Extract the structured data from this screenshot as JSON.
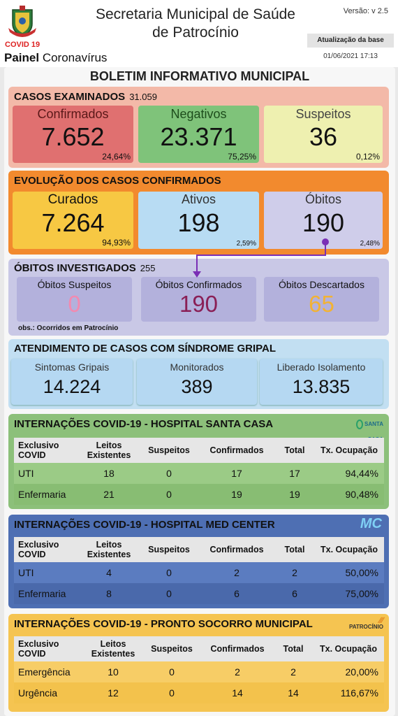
{
  "header": {
    "title_line1": "Secretaria Municipal de Saúde",
    "title_line2": "de Patrocínio",
    "covid_tag": "COVID 19",
    "painel_bold": "Painel",
    "painel_rest": " Coronavírus",
    "version": "Versão: v 2.5",
    "update_label": "Atualização da base",
    "update_date": "01/06/2021 17:13"
  },
  "boletim_title": "BOLETIM INFORMATIVO MUNICIPAL",
  "casos": {
    "title": "CASOS EXAMINADOS",
    "total": "31.059",
    "cards": [
      {
        "label": "Confirmados",
        "value": "7.652",
        "pct": "24,64%"
      },
      {
        "label": "Negativos",
        "value": "23.371",
        "pct": "75,25%"
      },
      {
        "label": "Suspeitos",
        "value": "36",
        "pct": "0,12%"
      }
    ]
  },
  "evolucao": {
    "title": "EVOLUÇÃO DOS CASOS CONFIRMADOS",
    "cards": [
      {
        "label": "Curados",
        "value": "7.264",
        "pct": "94,93%"
      },
      {
        "label": "Ativos",
        "value": "198",
        "pct": "2,59%"
      },
      {
        "label": "Óbitos",
        "value": "190",
        "pct": "2,48%"
      }
    ]
  },
  "obitos_inv": {
    "title": "ÓBITOS INVESTIGADOS",
    "total": "255",
    "cards": [
      {
        "label": "Óbitos Suspeitos",
        "value": "0"
      },
      {
        "label": "Óbitos Confirmados",
        "value": "190"
      },
      {
        "label": "Óbitos Descartados",
        "value": "65"
      }
    ],
    "obs": "obs.: Ocorridos em Patrocínio"
  },
  "sindrome": {
    "title": "ATENDIMENTO DE CASOS COM SÍNDROME GRIPAL",
    "cards": [
      {
        "label": "Sintomas Gripais",
        "value": "14.224"
      },
      {
        "label": "Monitorados",
        "value": "389"
      },
      {
        "label": "Liberado Isolamento",
        "value": "13.835"
      }
    ]
  },
  "santa_casa": {
    "title": "INTERNAÇÕES COVID-19 - HOSPITAL SANTA CASA",
    "logo_text": "SANTA CASA",
    "headers": {
      "c0": "Exclusivo COVID",
      "c1": "Leitos Existentes",
      "c2": "Suspeitos",
      "c3": "Confirmados",
      "c4": "Total",
      "c5": "Tx. Ocupação"
    },
    "rows": [
      {
        "c0": "UTI",
        "c1": "18",
        "c2": "0",
        "c3": "17",
        "c4": "17",
        "c5": "94,44%"
      },
      {
        "c0": "Enfermaria",
        "c1": "21",
        "c2": "0",
        "c3": "19",
        "c4": "19",
        "c5": "90,48%"
      }
    ]
  },
  "med_center": {
    "title": "INTERNAÇÕES COVID-19 - HOSPITAL MED CENTER",
    "logo_text": "MC",
    "headers": {
      "c0": "Exclusivo COVID",
      "c1": "Leitos Existentes",
      "c2": "Suspeitos",
      "c3": "Confirmados",
      "c4": "Total",
      "c5": "Tx. Ocupação"
    },
    "rows": [
      {
        "c0": "UTI",
        "c1": "4",
        "c2": "0",
        "c3": "2",
        "c4": "2",
        "c5": "50,00%"
      },
      {
        "c0": "Enfermaria",
        "c1": "8",
        "c2": "0",
        "c3": "6",
        "c4": "6",
        "c5": "75,00%"
      }
    ]
  },
  "pronto_socorro": {
    "title": "INTERNAÇÕES COVID-19 - PRONTO SOCORRO MUNICIPAL",
    "logo_text": "PATROCÍNIO",
    "headers": {
      "c0": "Exclusivo COVID",
      "c1": "Leitos Existentes",
      "c2": "Suspeitos",
      "c3": "Confirmados",
      "c4": "Total",
      "c5": "Tx. Ocupação"
    },
    "rows": [
      {
        "c0": "Emergência",
        "c1": "10",
        "c2": "0",
        "c3": "2",
        "c4": "2",
        "c5": "20,00%"
      },
      {
        "c0": "Urgência",
        "c1": "12",
        "c2": "0",
        "c3": "14",
        "c4": "14",
        "c5": "116,67%"
      }
    ]
  },
  "colors": {
    "casos_bg": "#f3b9a8",
    "confirmados": "#e07070",
    "negativos": "#7fc37a",
    "suspeitos": "#eef0b0",
    "evolucao_bg": "#f28a2e",
    "curados": "#f7c843",
    "ativos": "#b8dcf3",
    "obitos": "#cfcdea",
    "obitos_inv_bg": "#c9c8e6",
    "sindrome_bg": "#c2dff2",
    "santa_casa": "#8cc07a",
    "med_center": "#4e6fb3",
    "pronto_socorro": "#f5c451"
  }
}
